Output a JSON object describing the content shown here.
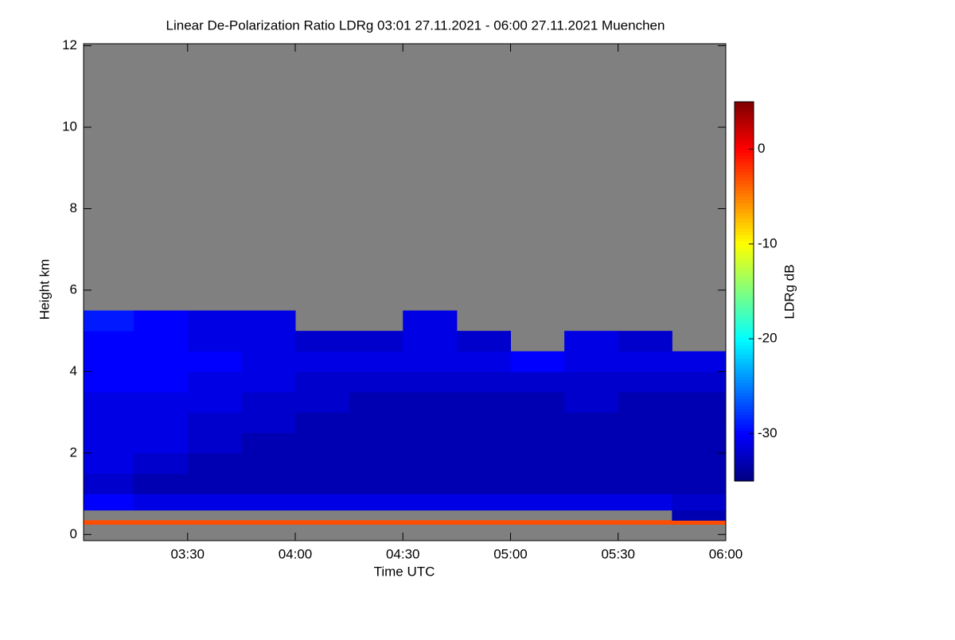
{
  "chart_data": {
    "type": "heatmap",
    "title": "Linear De-Polarization Ratio LDRg   03:01 27.11.2021 - 06:00 27.11.2021 Muenchen",
    "xlabel": "Time UTC",
    "ylabel": "Height km",
    "colorbar_label": "LDRg dB",
    "xlim": [
      "03:01",
      "06:00"
    ],
    "xticks": [
      "03:30",
      "04:00",
      "04:30",
      "05:00",
      "05:30",
      "06:00"
    ],
    "ylim": [
      -0.15,
      12.05
    ],
    "yticks": [
      0,
      2,
      4,
      6,
      8,
      10,
      12
    ],
    "clim": [
      -35,
      5
    ],
    "cticks": [
      0,
      -10,
      -20,
      -30
    ],
    "colormap": [
      "#00007f",
      "#0000ff",
      "#007fff",
      "#00ffff",
      "#7fff7f",
      "#ffff00",
      "#ff7f00",
      "#ff0000",
      "#7f0000"
    ],
    "missing_color": "#808080",
    "x": [
      "03:01",
      "03:15",
      "03:30",
      "03:45",
      "04:00",
      "04:15",
      "04:30",
      "04:45",
      "05:00",
      "05:15",
      "05:30",
      "05:45",
      "06:00"
    ],
    "y": [
      0.25,
      0.35,
      0.6,
      1.0,
      1.5,
      2,
      2.5,
      3,
      3.5,
      4,
      4.5,
      5,
      5.5
    ],
    "z": [
      [
        -3,
        -3,
        -3,
        -3,
        -3,
        -3,
        -3,
        -3,
        -3,
        -3,
        -3,
        -3
      ],
      [
        null,
        null,
        null,
        null,
        null,
        null,
        null,
        null,
        null,
        null,
        null,
        -33
      ],
      [
        -30,
        -31,
        -31,
        -31,
        -31,
        -31,
        -31,
        -31,
        -31,
        -31,
        -31,
        -32
      ],
      [
        -32,
        -33,
        -33,
        -33,
        -33,
        -33,
        -33,
        -33,
        -33,
        -33,
        -33,
        -33
      ],
      [
        -31,
        -32,
        -33,
        -33,
        -33,
        -33,
        -33,
        -33,
        -33,
        -33,
        -33,
        -33
      ],
      [
        -31,
        -31,
        -32,
        -33,
        -33,
        -33,
        -33,
        -33,
        -33,
        -33,
        -33,
        -33
      ],
      [
        -31,
        -31,
        -32,
        -32,
        -33,
        -33,
        -33,
        -33,
        -33,
        -33,
        -33,
        -33
      ],
      [
        -31,
        -31,
        -31,
        -32,
        -32,
        -33,
        -33,
        -33,
        -33,
        -32,
        -33,
        -33
      ],
      [
        -30,
        -30,
        -31,
        -31,
        -32,
        -32,
        -32,
        -32,
        -32,
        -32,
        -32,
        -32
      ],
      [
        -30,
        -30,
        -30,
        -31,
        -31,
        -31,
        -31,
        -31,
        -30,
        -31,
        -31,
        -31
      ],
      [
        -30,
        -30,
        -31,
        -31,
        -32,
        -32,
        -31,
        -32,
        null,
        -31,
        -32,
        null
      ],
      [
        -29,
        -30,
        -31,
        -31,
        null,
        null,
        -31,
        null,
        null,
        null,
        null,
        null
      ]
    ]
  }
}
